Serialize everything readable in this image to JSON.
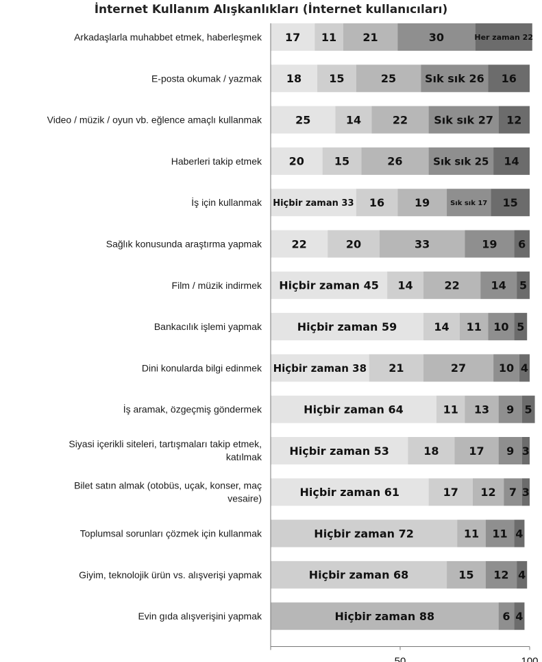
{
  "chart_data": {
    "type": "bar",
    "orientation": "horizontal",
    "stacked": true,
    "title": "İnternet Kullanım Alışkanlıkları (İnternet kullanıcıları)",
    "xlim": [
      0,
      100
    ],
    "xticks": [
      "50",
      "100"
    ],
    "grid": false,
    "legend": "none",
    "colors": [
      "#e4e4e4",
      "#cfcfcf",
      "#b7b7b7",
      "#8f8f8f",
      "#6c6c6c"
    ],
    "categories": [
      [
        "Arkadaşlarla muhabbet etmek, haberleşmek"
      ],
      [
        "E-posta okumak / yazmak"
      ],
      [
        "Video / müzik / oyun vb. eğlence amaçlı kullanmak"
      ],
      [
        "Haberleri takip etmek"
      ],
      [
        "İş için kullanmak"
      ],
      [
        "Sağlık konusunda araştırma yapmak"
      ],
      [
        "Film / müzik indirmek"
      ],
      [
        "Bankacılık işlemi yapmak"
      ],
      [
        "Dini konularda bilgi edinmek"
      ],
      [
        "İş aramak, özgeçmiş göndermek"
      ],
      [
        "Siyasi içerikli siteleri, tartışmaları takip etmek,",
        "katılmak"
      ],
      [
        "Bilet satın almak (otobüs, uçak, konser, maç",
        "vesaire)"
      ],
      [
        "Toplumsal sorunları çözmek için kullanmak"
      ],
      [
        "Giyim, teknolojik ürün vs. alışverişi yapmak"
      ],
      [
        "Evin gıda alışverişini yapmak"
      ]
    ],
    "rows": [
      {
        "values": [
          17,
          11,
          21,
          30,
          22
        ],
        "labels": [
          "17",
          "11",
          "21",
          "30",
          "Her zaman 22"
        ]
      },
      {
        "values": [
          18,
          15,
          25,
          26,
          16
        ],
        "labels": [
          "18",
          "15",
          "25",
          "Sık sık 26",
          "16"
        ]
      },
      {
        "values": [
          25,
          14,
          22,
          27,
          12
        ],
        "labels": [
          "25",
          "14",
          "22",
          "Sık sık 27",
          "12"
        ]
      },
      {
        "values": [
          20,
          15,
          26,
          25,
          14
        ],
        "labels": [
          "20",
          "15",
          "26",
          "Sık sık 25",
          "14"
        ]
      },
      {
        "values": [
          33,
          16,
          19,
          17,
          15
        ],
        "labels": [
          "Hiçbir zaman 33",
          "16",
          "19",
          "Sık sık 17",
          "15"
        ]
      },
      {
        "values": [
          22,
          20,
          33,
          19,
          6
        ],
        "labels": [
          "22",
          "20",
          "33",
          "19",
          "6"
        ]
      },
      {
        "values": [
          45,
          14,
          22,
          14,
          5
        ],
        "labels": [
          "Hiçbir zaman 45",
          "14",
          "22",
          "14",
          "5"
        ]
      },
      {
        "values": [
          59,
          14,
          11,
          10,
          5
        ],
        "labels": [
          "Hiçbir zaman 59",
          "14",
          "11",
          "10",
          "5"
        ]
      },
      {
        "values": [
          38,
          21,
          27,
          10,
          4
        ],
        "labels": [
          "Hiçbir zaman 38",
          "21",
          "27",
          "10",
          "4"
        ]
      },
      {
        "values": [
          64,
          11,
          13,
          9,
          5
        ],
        "labels": [
          "Hiçbir zaman 64",
          "11",
          "13",
          "9",
          "5"
        ]
      },
      {
        "values": [
          53,
          18,
          17,
          9,
          3
        ],
        "labels": [
          "Hiçbir zaman 53",
          "18",
          "17",
          "9",
          "3"
        ]
      },
      {
        "values": [
          61,
          17,
          12,
          7,
          3
        ],
        "labels": [
          "Hiçbir zaman 61",
          "17",
          "12",
          "7",
          "3"
        ]
      },
      {
        "values": [
          72,
          11,
          11,
          4
        ],
        "labels": [
          "Hiçbir zaman 72",
          "11",
          "11",
          "4"
        ]
      },
      {
        "values": [
          68,
          15,
          12,
          4
        ],
        "labels": [
          "Hiçbir zaman 68",
          "15",
          "12",
          "4"
        ]
      },
      {
        "values": [
          88,
          6,
          4
        ],
        "labels": [
          "Hiçbir zaman 88",
          "6",
          "4"
        ]
      }
    ]
  }
}
